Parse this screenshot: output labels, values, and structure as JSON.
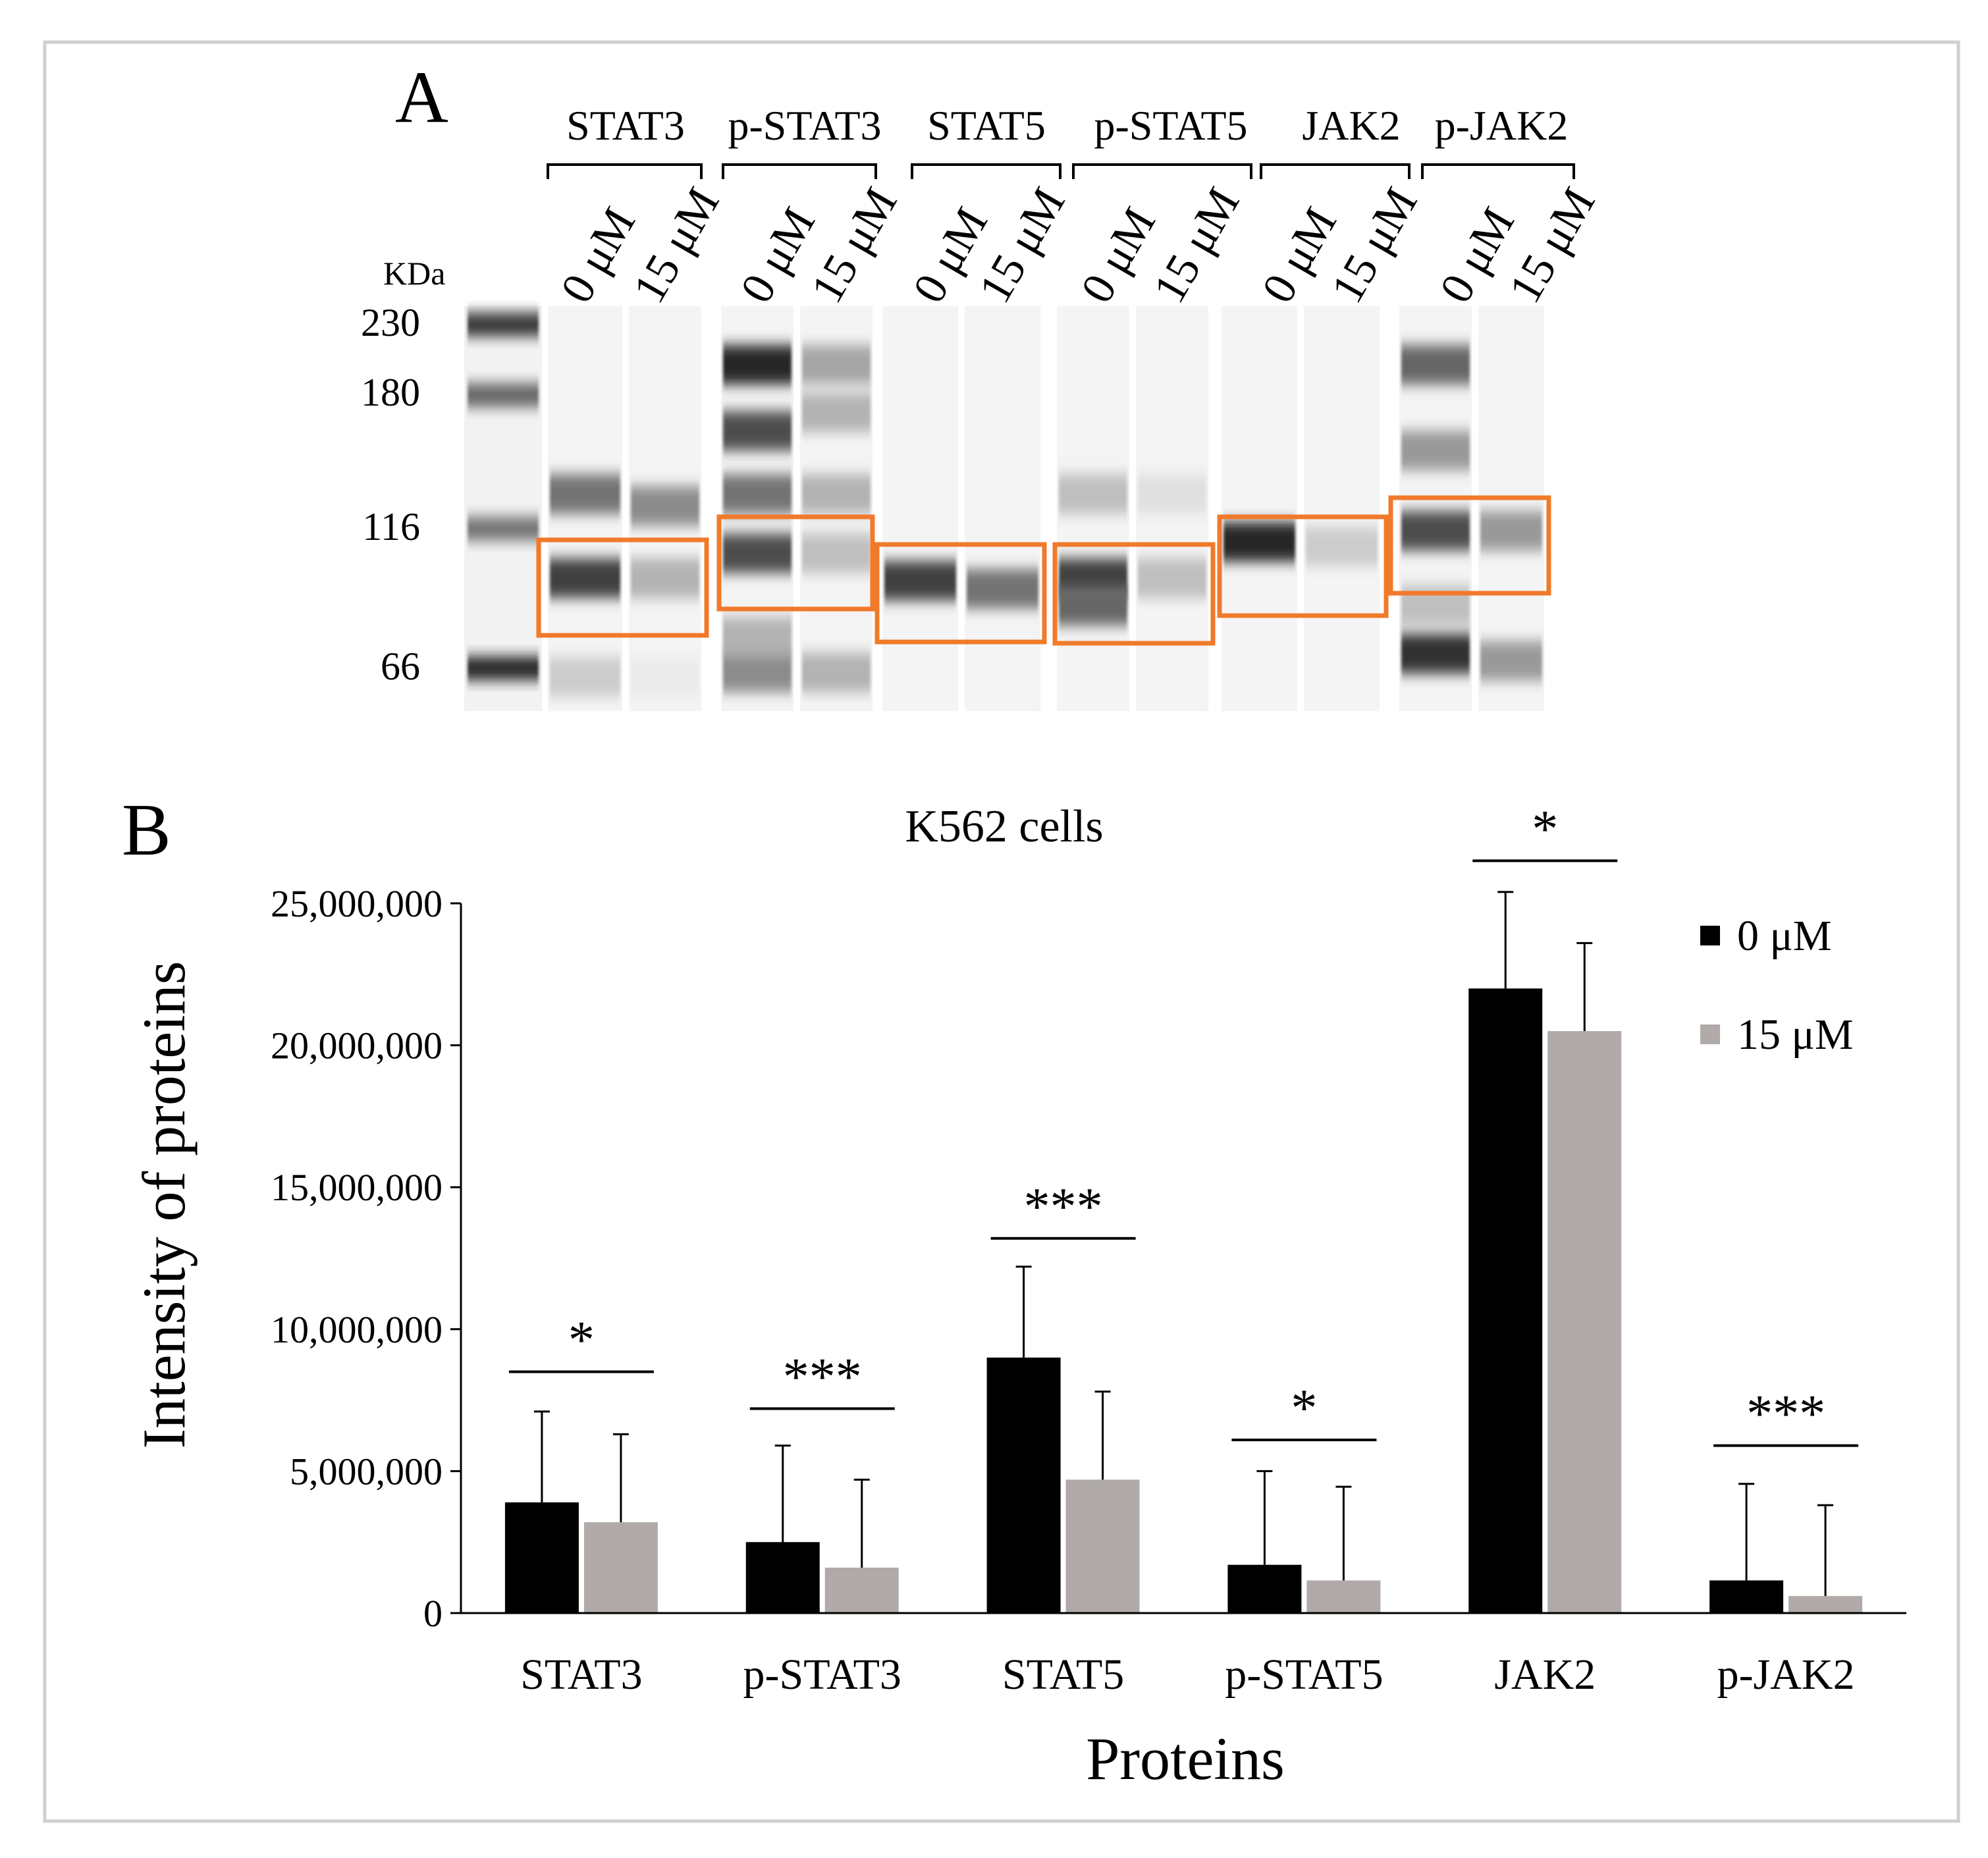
{
  "panel_a": {
    "label": "A",
    "kda_label": "KDa",
    "markers": [
      "230",
      "180",
      "116",
      "66"
    ],
    "doses": [
      "0 μM",
      "15 μM"
    ],
    "groups": [
      {
        "name": "STAT3",
        "lanes": [
          {
            "bands": [
              {
                "mw": 130,
                "intensity": 0.55
              },
              {
                "mw": 95,
                "intensity": 0.75
              },
              {
                "mw": 64,
                "intensity": 0.2
              }
            ]
          },
          {
            "bands": [
              {
                "mw": 125,
                "intensity": 0.45
              },
              {
                "mw": 95,
                "intensity": 0.3
              },
              {
                "mw": 64,
                "intensity": 0.08
              }
            ]
          }
        ]
      },
      {
        "name": "p-STAT3",
        "lanes": [
          {
            "bands": [
              {
                "mw": 200,
                "intensity": 0.85
              },
              {
                "mw": 160,
                "intensity": 0.7
              },
              {
                "mw": 130,
                "intensity": 0.55
              },
              {
                "mw": 105,
                "intensity": 0.7
              },
              {
                "mw": 75,
                "intensity": 0.3
              },
              {
                "mw": 65,
                "intensity": 0.45
              }
            ]
          },
          {
            "bands": [
              {
                "mw": 200,
                "intensity": 0.35
              },
              {
                "mw": 170,
                "intensity": 0.3
              },
              {
                "mw": 130,
                "intensity": 0.3
              },
              {
                "mw": 105,
                "intensity": 0.25
              },
              {
                "mw": 65,
                "intensity": 0.3
              }
            ]
          }
        ]
      },
      {
        "name": "STAT5",
        "lanes": [
          {
            "bands": [
              {
                "mw": 94,
                "intensity": 0.75
              }
            ]
          },
          {
            "bands": [
              {
                "mw": 91,
                "intensity": 0.55
              }
            ]
          }
        ]
      },
      {
        "name": "p-STAT5",
        "lanes": [
          {
            "bands": [
              {
                "mw": 130,
                "intensity": 0.25
              },
              {
                "mw": 95,
                "intensity": 0.75
              },
              {
                "mw": 85,
                "intensity": 0.6
              }
            ]
          },
          {
            "bands": [
              {
                "mw": 130,
                "intensity": 0.12
              },
              {
                "mw": 95,
                "intensity": 0.25
              }
            ]
          }
        ]
      },
      {
        "name": "JAK2",
        "lanes": [
          {
            "bands": [
              {
                "mw": 110,
                "intensity": 0.85
              }
            ]
          },
          {
            "bands": [
              {
                "mw": 108,
                "intensity": 0.2
              }
            ]
          }
        ]
      },
      {
        "name": "p-JAK2",
        "lanes": [
          {
            "bands": [
              {
                "mw": 200,
                "intensity": 0.6
              },
              {
                "mw": 150,
                "intensity": 0.4
              },
              {
                "mw": 115,
                "intensity": 0.7
              },
              {
                "mw": 85,
                "intensity": 0.25
              },
              {
                "mw": 70,
                "intensity": 0.8
              }
            ]
          },
          {
            "bands": [
              {
                "mw": 115,
                "intensity": 0.4
              },
              {
                "mw": 68,
                "intensity": 0.4
              }
            ]
          }
        ]
      }
    ],
    "highlight_color": "#F07A2A"
  },
  "chart_data": {
    "type": "bar",
    "panel_label": "B",
    "title": "K562 cells",
    "xlabel": "Proteins",
    "ylabel": "Intensity of proteins",
    "categories": [
      "STAT3",
      "p-STAT3",
      "STAT5",
      "p-STAT5",
      "JAK2",
      "p-JAK2"
    ],
    "series": [
      {
        "name": "0 μM",
        "color": "#000000",
        "values": [
          3900000,
          2500000,
          9000000,
          1700000,
          22000000,
          1150000
        ],
        "errors": [
          3200000,
          3400000,
          3200000,
          3300000,
          3400000,
          3400000
        ]
      },
      {
        "name": "15 μM",
        "color": "#B0ABA8",
        "values": [
          3200000,
          1600000,
          4700000,
          1150000,
          20500000,
          600000
        ],
        "errors": [
          3100000,
          3100000,
          3100000,
          3300000,
          3100000,
          3200000
        ]
      }
    ],
    "significance": [
      "*",
      "***",
      "***",
      "*",
      "*",
      "***"
    ],
    "significance_height": [
      8500000,
      7200000,
      13200000,
      6100000,
      26500000,
      5900000
    ],
    "ylim": [
      0,
      25000000
    ],
    "yticks": [
      "0",
      "5,000,000",
      "10,000,000",
      "15,000,000",
      "20,000,000",
      "25,000,000"
    ],
    "ytick_values": [
      0,
      5000000,
      10000000,
      15000000,
      20000000,
      25000000
    ],
    "legend_position": "top-right",
    "grid": false
  }
}
